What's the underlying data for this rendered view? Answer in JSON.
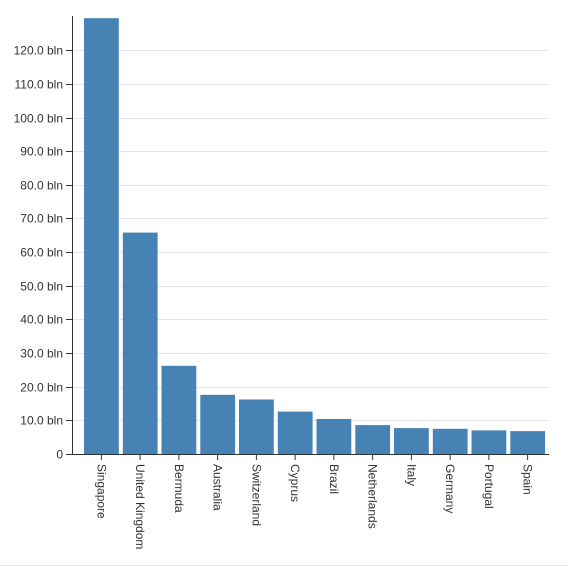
{
  "chart_data": {
    "type": "bar",
    "title": "",
    "xlabel": "",
    "ylabel": "",
    "categories": [
      "Singapore",
      "United Kingdom",
      "Bermuda",
      "Australia",
      "Switzerland",
      "Cyprus",
      "Brazil",
      "Netherlands",
      "Italy",
      "Germany",
      "Portugal",
      "Spain"
    ],
    "values": [
      129.5,
      65.8,
      26.2,
      17.6,
      16.2,
      12.6,
      10.4,
      8.6,
      7.7,
      7.5,
      7.0,
      6.8
    ],
    "ylim": [
      0,
      130
    ],
    "yticks": [
      0,
      10,
      20,
      30,
      40,
      50,
      60,
      70,
      80,
      90,
      100,
      110,
      120
    ],
    "ytick_labels": [
      "0",
      "10.0 bln",
      "20.0 bln",
      "30.0 bln",
      "40.0 bln",
      "50.0 bln",
      "60.0 bln",
      "70.0 bln",
      "80.0 bln",
      "90.0 bln",
      "100.0 bln",
      "110.0 bln",
      "120.0 bln"
    ],
    "grid": true,
    "bar_color": "#4682b4"
  }
}
